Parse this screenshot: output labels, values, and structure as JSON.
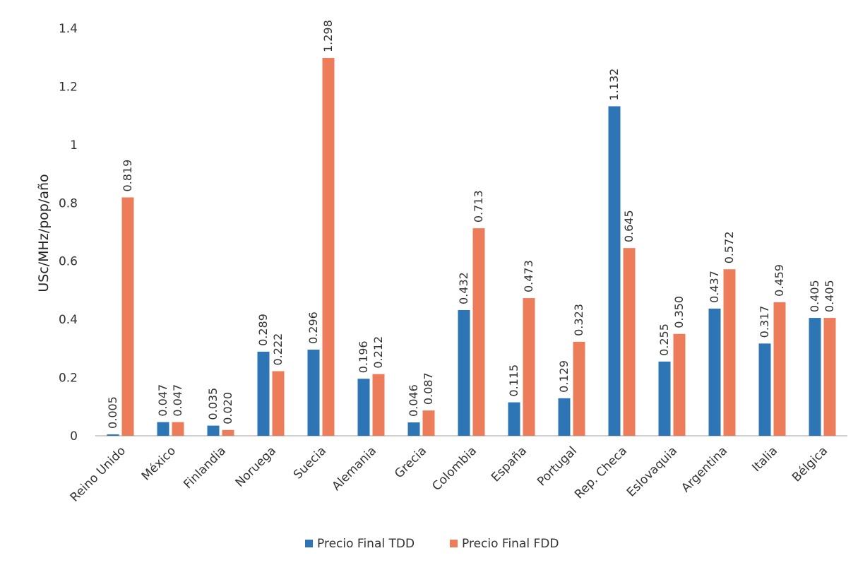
{
  "chart_data": {
    "type": "bar",
    "title": "",
    "xlabel": "",
    "ylabel": "USc/MHz/pop/año",
    "ylim": [
      0,
      1.4
    ],
    "yticks": [
      "0",
      "0.2",
      "0.4",
      "0.6",
      "0.8",
      "1",
      "1.2",
      "1.4"
    ],
    "grid": false,
    "legend_position": "bottom",
    "categories": [
      "Reino Unido",
      "México",
      "Finlandia",
      "Noruega",
      "Suecia",
      "Alemania",
      "Grecia",
      "Colombia",
      "España",
      "Portugal",
      "Rep. Checa",
      "Eslovaquia",
      "Argentina",
      "Italia",
      "Bélgica"
    ],
    "series": [
      {
        "name": "Precio Final TDD",
        "color": "#2e75b6",
        "values": [
          0.005,
          0.047,
          0.035,
          0.289,
          0.296,
          0.196,
          0.046,
          0.432,
          0.115,
          0.129,
          1.132,
          0.255,
          0.437,
          0.317,
          0.405
        ],
        "labels": [
          "0.005",
          "0.047",
          "0.035",
          "0.289",
          "0.296",
          "0.196",
          "0.046",
          "0.432",
          "0.115",
          "0.129",
          "1.132",
          "0.255",
          "0.437",
          "0.317",
          "0.405"
        ]
      },
      {
        "name": "Precio Final FDD",
        "color": "#ed7d5a",
        "values": [
          0.819,
          0.047,
          0.02,
          0.222,
          1.298,
          0.212,
          0.087,
          0.713,
          0.473,
          0.323,
          0.645,
          0.35,
          0.572,
          0.459,
          0.405
        ],
        "labels": [
          "0.819",
          "0.047",
          "0.020",
          "0.222",
          "1.298",
          "0.212",
          "0.087",
          "0.713",
          "0.473",
          "0.323",
          "0.645",
          "0.350",
          "0.572",
          "0.459",
          "0.405"
        ]
      }
    ]
  }
}
